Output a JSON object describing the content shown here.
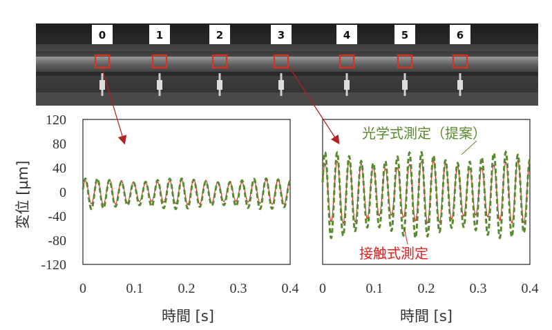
{
  "photo": {
    "marker_labels": [
      "0",
      "1",
      "2",
      "3",
      "4",
      "5",
      "6"
    ]
  },
  "chart_data": [
    {
      "type": "line",
      "panel": "left",
      "xlabel": "時間 [s]",
      "ylabel": "変位 [µm]",
      "xlim": [
        0,
        0.4
      ],
      "ylim": [
        -120,
        120
      ],
      "x_ticks": [
        "0",
        "0.1",
        "0.2",
        "0.3",
        "0.4"
      ],
      "y_ticks": [
        "120",
        "80",
        "40",
        "0",
        "-40",
        "-80",
        "-120"
      ],
      "frequency_hz": 43,
      "series": [
        {
          "name": "接触式測定",
          "color": "#e02020",
          "style": "solid",
          "amplitude_um": 18,
          "offset_um": 0
        },
        {
          "name": "光学式測定（提案）",
          "color": "#5a8a2e",
          "style": "dashed",
          "amplitude_um": 22,
          "offset_um": -3
        }
      ]
    },
    {
      "type": "line",
      "panel": "right",
      "xlabel": "時間 [s]",
      "xlim": [
        0,
        0.4
      ],
      "ylim": [
        -120,
        120
      ],
      "x_ticks": [
        "0",
        "0.1",
        "0.2",
        "0.3",
        "0.4"
      ],
      "frequency_hz": 43,
      "series": [
        {
          "name": "接触式測定",
          "color": "#e02020",
          "style": "solid",
          "amplitude_um": 45,
          "offset_um": 0
        },
        {
          "name": "光学式測定（提案）",
          "color": "#5a8a2e",
          "style": "dashed",
          "amplitude_um": 62,
          "offset_um": -5
        }
      ]
    }
  ],
  "legend": {
    "optical": "光学式測定（提案）",
    "contact": "接触式測定"
  },
  "colors": {
    "contact": "#e02020",
    "optical": "#5a8a2e",
    "arrow": "#b22222",
    "marker": "#e03020"
  }
}
